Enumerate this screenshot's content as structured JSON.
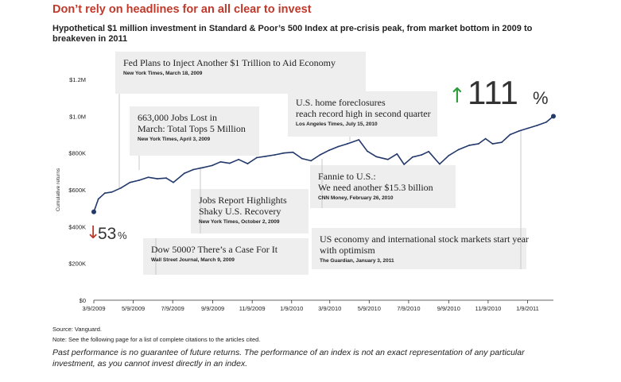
{
  "header": {
    "title": "Don’t rely on headlines for an all clear to invest",
    "subtitle": "Hypothetical $1 million investment in Standard & Poor’s 500 Index at pre-crisis peak, from market bottom in 2009 to breakeven in 2011"
  },
  "colors": {
    "line": "#23396b",
    "title": "#c0392b",
    "up": "#2e9c3a",
    "down": "#c0392b",
    "box": "#eeeeee"
  },
  "chart_data": {
    "type": "line",
    "ylabel": "Cumulative returns",
    "ylim": [
      0,
      1200000
    ],
    "yticks": [
      0,
      200000,
      400000,
      600000,
      800000,
      1000000,
      1200000
    ],
    "ytick_labels": [
      "$0",
      "$200K",
      "$400K",
      "$600K",
      "$800K",
      "$1.0M",
      "$1.2M"
    ],
    "xlim": [
      "2009-03-09",
      "2011-02-18"
    ],
    "xticks": [
      "2009-03-09",
      "2009-05-09",
      "2009-07-09",
      "2009-09-09",
      "2009-11-09",
      "2010-01-09",
      "2010-03-09",
      "2010-05-09",
      "2010-07-09",
      "2010-09-09",
      "2010-11-09",
      "2011-01-09"
    ],
    "xtick_labels": [
      "3/9/2009",
      "5/9/2009",
      "7/9/2009",
      "9/9/2009",
      "11/9/2009",
      "1/9/2010",
      "3/9/2010",
      "5/9/2010",
      "7/9/2010",
      "9/9/2010",
      "11/9/2010",
      "1/9/2011"
    ],
    "grid": false,
    "series": [
      {
        "points": [
          [
            "2009-03-09",
            480000
          ],
          [
            "2009-03-16",
            550000
          ],
          [
            "2009-03-26",
            582000
          ],
          [
            "2009-04-06",
            588000
          ],
          [
            "2009-04-20",
            610000
          ],
          [
            "2009-05-04",
            640000
          ],
          [
            "2009-05-18",
            652000
          ],
          [
            "2009-06-01",
            668000
          ],
          [
            "2009-06-15",
            660000
          ],
          [
            "2009-06-29",
            664000
          ],
          [
            "2009-07-10",
            640000
          ],
          [
            "2009-07-27",
            690000
          ],
          [
            "2009-08-10",
            710000
          ],
          [
            "2009-08-24",
            720000
          ],
          [
            "2009-09-08",
            732000
          ],
          [
            "2009-09-21",
            752000
          ],
          [
            "2009-10-05",
            744000
          ],
          [
            "2009-10-19",
            765000
          ],
          [
            "2009-11-02",
            742000
          ],
          [
            "2009-11-16",
            775000
          ],
          [
            "2009-11-30",
            782000
          ],
          [
            "2009-12-14",
            790000
          ],
          [
            "2009-12-28",
            800000
          ],
          [
            "2010-01-11",
            804000
          ],
          [
            "2010-01-25",
            770000
          ],
          [
            "2010-02-08",
            758000
          ],
          [
            "2010-02-22",
            790000
          ],
          [
            "2010-03-08",
            815000
          ],
          [
            "2010-03-22",
            835000
          ],
          [
            "2010-04-05",
            850000
          ],
          [
            "2010-04-23",
            872000
          ],
          [
            "2010-05-06",
            810000
          ],
          [
            "2010-05-20",
            780000
          ],
          [
            "2010-06-07",
            765000
          ],
          [
            "2010-06-21",
            795000
          ],
          [
            "2010-07-02",
            738000
          ],
          [
            "2010-07-15",
            778000
          ],
          [
            "2010-07-29",
            790000
          ],
          [
            "2010-08-09",
            808000
          ],
          [
            "2010-08-26",
            740000
          ],
          [
            "2010-09-09",
            786000
          ],
          [
            "2010-09-24",
            818000
          ],
          [
            "2010-10-11",
            842000
          ],
          [
            "2010-10-25",
            850000
          ],
          [
            "2010-11-05",
            878000
          ],
          [
            "2010-11-16",
            850000
          ],
          [
            "2010-11-30",
            858000
          ],
          [
            "2010-12-13",
            900000
          ],
          [
            "2010-12-27",
            920000
          ],
          [
            "2011-01-10",
            935000
          ],
          [
            "2011-01-24",
            950000
          ],
          [
            "2011-02-07",
            968000
          ],
          [
            "2011-02-18",
            1000000
          ]
        ]
      }
    ],
    "callouts": {
      "down": {
        "arrow": "↓",
        "value": "53",
        "unit": "%"
      },
      "up": {
        "arrow": "↑",
        "value": "111",
        "unit": "%"
      }
    },
    "annotations": [
      {
        "headline": "Fed Plans to Inject Another $1 Trillion to Aid Economy",
        "source": "New York Times, March 18, 2009"
      },
      {
        "headline": "663,000 Jobs Lost in March: Total Tops 5 Million",
        "source": "New York Times, April 3, 2009"
      },
      {
        "headline": "U.S. home foreclosures reach record high in second quarter",
        "source": "Los Angeles Times, July 15, 2010"
      },
      {
        "headline": "Jobs Report Highlights Shaky U.S. Recovery",
        "source": "New York Times, October 2, 2009"
      },
      {
        "headline": "Fannie to U.S.: We need another $15.3 billion",
        "source": "CNN Money, February 26, 2010"
      },
      {
        "headline": "Dow 5000? There’s a Case For It",
        "source": "Wall Street Journal, March 9, 2009"
      },
      {
        "headline": "US economy and international stock markets start year with optimism",
        "source": "The Guardian, January 3, 2011"
      }
    ]
  },
  "footer": {
    "source": "Source: Vanguard.",
    "note": "Note: See the following page for a list of complete citations to the articles cited.",
    "disclaimer": "Past performance is no guarantee of future returns. The performance of an index is not an exact representation of any particular investment, as you cannot invest directly in an index."
  }
}
